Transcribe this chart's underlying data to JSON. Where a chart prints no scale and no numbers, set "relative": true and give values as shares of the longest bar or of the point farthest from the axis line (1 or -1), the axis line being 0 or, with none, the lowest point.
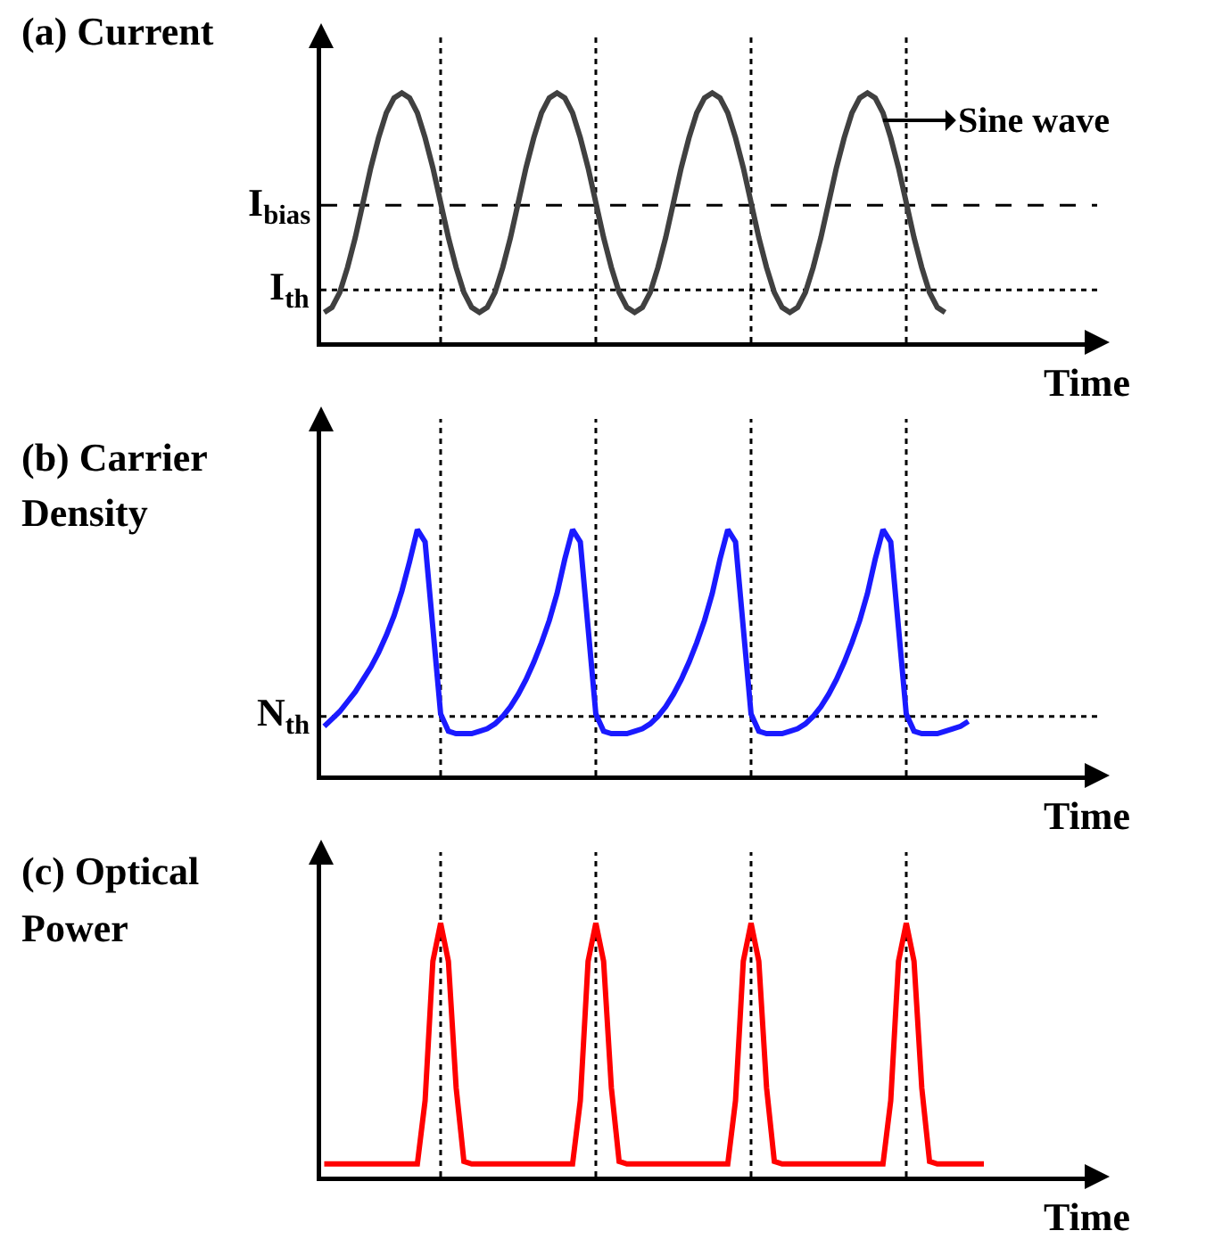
{
  "chart_data": [
    {
      "type": "line",
      "relative": true,
      "ylabel": "(a) Current",
      "xlabel": "Time",
      "marker": "none",
      "line_style": "solid",
      "grid": "x",
      "annotations": [
        "Sine wave"
      ],
      "categories": [
        null,
        null,
        null,
        null,
        null,
        null,
        null,
        null,
        null,
        null,
        null,
        null,
        null,
        null,
        null,
        null,
        null,
        null,
        null,
        null,
        null,
        null,
        null,
        null,
        null,
        null,
        null,
        null,
        null,
        null,
        null,
        null,
        null,
        null,
        null,
        null,
        null,
        null,
        null,
        null,
        null,
        null,
        null,
        null,
        null,
        null,
        null,
        null,
        null,
        null,
        null,
        null,
        null,
        null,
        null,
        null,
        null,
        null,
        null,
        null,
        null,
        null,
        null,
        null,
        null,
        null,
        null,
        null,
        null,
        null,
        null,
        null,
        null,
        null,
        null,
        null,
        null,
        null,
        null,
        null,
        null
      ],
      "series": [
        {
          "color": "#404040",
          "values": [
            0.12,
            0.14,
            0.2,
            0.3,
            0.42,
            0.56,
            0.7,
            0.82,
            0.92,
            0.98,
            1.0,
            0.98,
            0.92,
            0.82,
            0.7,
            0.56,
            0.42,
            0.3,
            0.2,
            0.14,
            0.12,
            0.14,
            0.2,
            0.3,
            0.42,
            0.56,
            0.7,
            0.82,
            0.92,
            0.98,
            1.0,
            0.98,
            0.92,
            0.82,
            0.7,
            0.56,
            0.42,
            0.3,
            0.2,
            0.14,
            0.12,
            0.14,
            0.2,
            0.3,
            0.42,
            0.56,
            0.7,
            0.82,
            0.92,
            0.98,
            1.0,
            0.98,
            0.92,
            0.82,
            0.7,
            0.56,
            0.42,
            0.3,
            0.2,
            0.14,
            0.12,
            0.14,
            0.2,
            0.3,
            0.42,
            0.56,
            0.7,
            0.82,
            0.92,
            0.98,
            1.0,
            0.98,
            0.92,
            0.82,
            0.7,
            0.56,
            0.42,
            0.3,
            0.2,
            0.14,
            0.12
          ]
        }
      ],
      "ref_lines": [
        {
          "axis": "y",
          "value": 0.55,
          "label": "I$_{bias}$",
          "line_style": "dashed",
          "color": "#000000"
        },
        {
          "axis": "y",
          "value": 0.21,
          "label": "I$_{th}$",
          "line_style": "dotted",
          "color": "#000000"
        }
      ]
    },
    {
      "type": "line",
      "relative": true,
      "ylabel": "(b) Carrier Density",
      "xlabel": "Time",
      "marker": "none",
      "line_style": "solid",
      "grid": "x",
      "categories": [
        null,
        null,
        null,
        null,
        null,
        null,
        null,
        null,
        null,
        null,
        null,
        null,
        null,
        null,
        null,
        null,
        null,
        null,
        null,
        null,
        null,
        null,
        null,
        null,
        null,
        null,
        null,
        null,
        null,
        null,
        null,
        null,
        null,
        null,
        null,
        null,
        null,
        null,
        null,
        null,
        null,
        null,
        null,
        null,
        null,
        null,
        null,
        null,
        null,
        null,
        null,
        null,
        null,
        null,
        null,
        null,
        null,
        null,
        null,
        null,
        null,
        null,
        null,
        null,
        null,
        null,
        null,
        null,
        null,
        null,
        null,
        null,
        null,
        null,
        null,
        null,
        null,
        null,
        null,
        null,
        null,
        null,
        null,
        null
      ],
      "series": [
        {
          "color": "#1a1aff",
          "values": [
            0.2,
            0.23,
            0.26,
            0.3,
            0.34,
            0.39,
            0.44,
            0.5,
            0.57,
            0.65,
            0.75,
            0.87,
            1.0,
            0.95,
            0.6,
            0.25,
            0.18,
            0.17,
            0.17,
            0.17,
            0.18,
            0.19,
            0.21,
            0.24,
            0.28,
            0.33,
            0.39,
            0.46,
            0.54,
            0.63,
            0.74,
            0.88,
            1.0,
            0.95,
            0.6,
            0.25,
            0.18,
            0.17,
            0.17,
            0.17,
            0.18,
            0.19,
            0.21,
            0.24,
            0.28,
            0.33,
            0.39,
            0.46,
            0.54,
            0.63,
            0.74,
            0.88,
            1.0,
            0.95,
            0.6,
            0.25,
            0.18,
            0.17,
            0.17,
            0.17,
            0.18,
            0.19,
            0.21,
            0.24,
            0.28,
            0.33,
            0.39,
            0.46,
            0.54,
            0.63,
            0.74,
            0.88,
            1.0,
            0.95,
            0.6,
            0.25,
            0.18,
            0.17,
            0.17,
            0.17,
            0.18,
            0.19,
            0.2,
            0.22
          ]
        }
      ],
      "ref_lines": [
        {
          "axis": "y",
          "value": 0.24,
          "label": "N$_{th}$",
          "line_style": "dotted",
          "color": "#000000"
        }
      ]
    },
    {
      "type": "line",
      "relative": true,
      "ylabel": "(c) Optical Power",
      "xlabel": "Time",
      "marker": "none",
      "line_style": "solid",
      "grid": "x",
      "categories": [
        null,
        null,
        null,
        null,
        null,
        null,
        null,
        null,
        null,
        null,
        null,
        null,
        null,
        null,
        null,
        null,
        null,
        null,
        null,
        null,
        null,
        null,
        null,
        null,
        null,
        null,
        null,
        null,
        null,
        null,
        null,
        null,
        null,
        null,
        null,
        null,
        null,
        null,
        null,
        null,
        null,
        null,
        null,
        null,
        null,
        null,
        null,
        null,
        null,
        null,
        null,
        null,
        null,
        null,
        null,
        null,
        null,
        null,
        null,
        null,
        null,
        null,
        null,
        null,
        null,
        null,
        null,
        null,
        null,
        null,
        null,
        null,
        null,
        null,
        null,
        null,
        null,
        null,
        null,
        null,
        null,
        null,
        null,
        null,
        null,
        null
      ],
      "series": [
        {
          "color": "#ff0000",
          "values": [
            0.05,
            0.05,
            0.05,
            0.05,
            0.05,
            0.05,
            0.05,
            0.05,
            0.05,
            0.05,
            0.05,
            0.05,
            0.05,
            0.3,
            0.85,
            1.0,
            0.85,
            0.35,
            0.06,
            0.05,
            0.05,
            0.05,
            0.05,
            0.05,
            0.05,
            0.05,
            0.05,
            0.05,
            0.05,
            0.05,
            0.05,
            0.05,
            0.05,
            0.3,
            0.85,
            1.0,
            0.85,
            0.35,
            0.06,
            0.05,
            0.05,
            0.05,
            0.05,
            0.05,
            0.05,
            0.05,
            0.05,
            0.05,
            0.05,
            0.05,
            0.05,
            0.05,
            0.05,
            0.3,
            0.85,
            1.0,
            0.85,
            0.35,
            0.06,
            0.05,
            0.05,
            0.05,
            0.05,
            0.05,
            0.05,
            0.05,
            0.05,
            0.05,
            0.05,
            0.05,
            0.05,
            0.05,
            0.05,
            0.3,
            0.85,
            1.0,
            0.85,
            0.35,
            0.06,
            0.05,
            0.05,
            0.05,
            0.05,
            0.05,
            0.05,
            0.05
          ]
        }
      ]
    }
  ]
}
